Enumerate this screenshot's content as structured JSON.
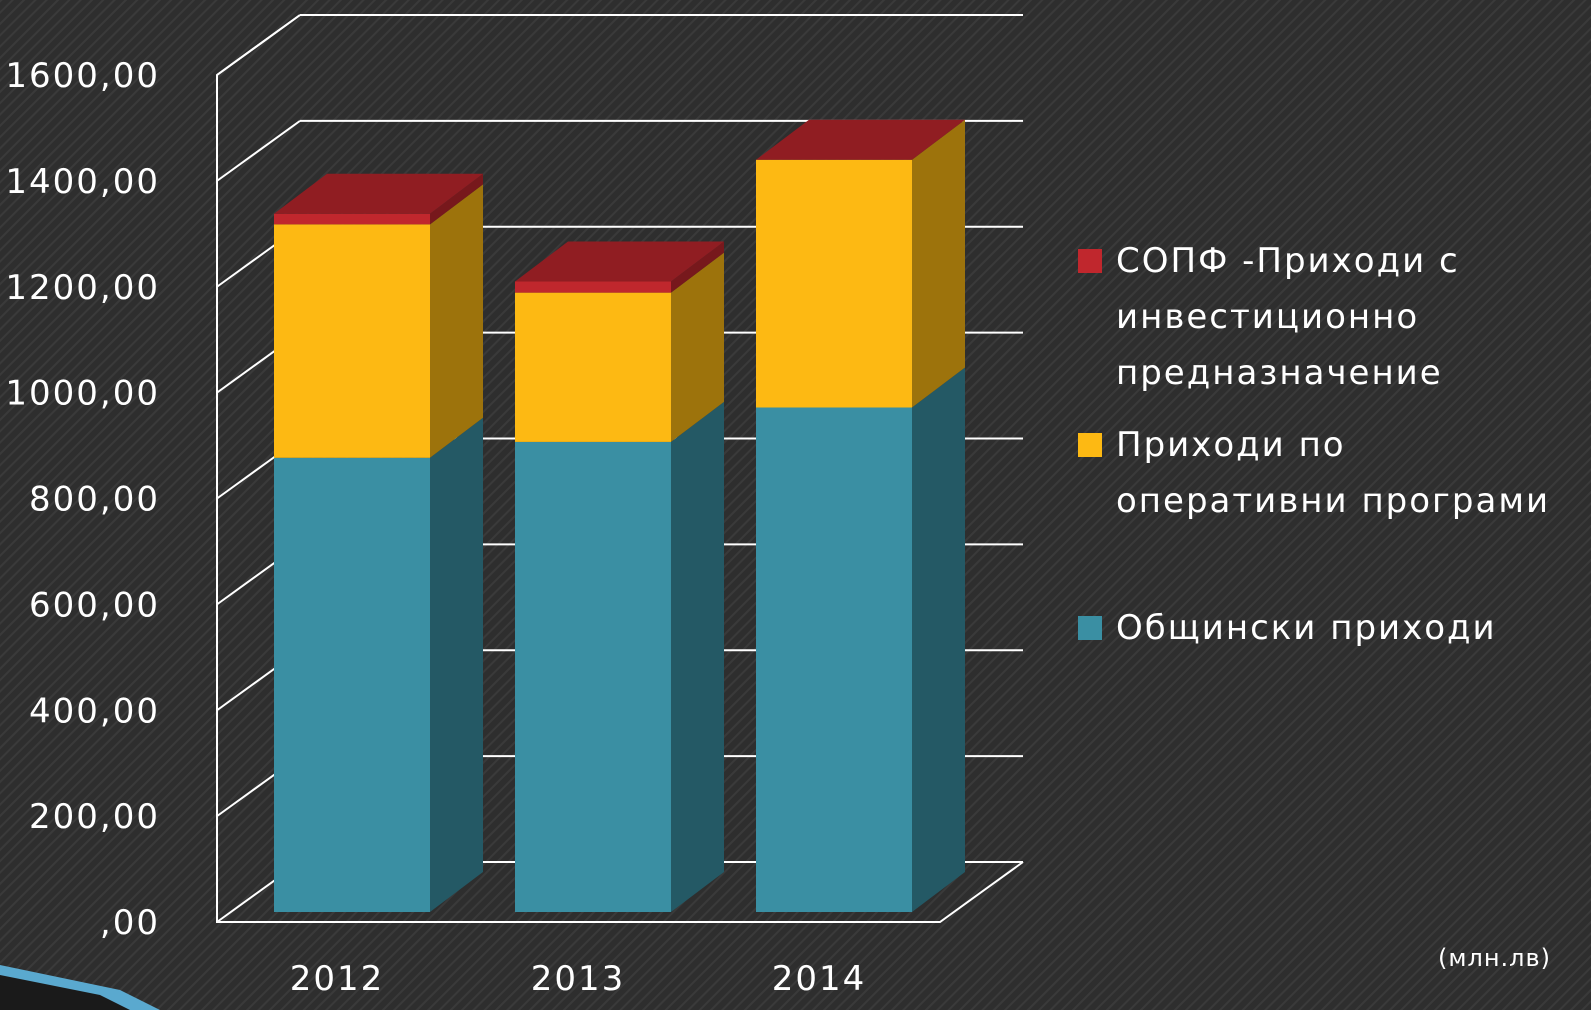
{
  "chart_data": {
    "type": "bar3d_stacked",
    "categories": [
      "2012",
      "2013",
      "2014"
    ],
    "series": [
      {
        "name": "Общински приходи",
        "color": "#3a8fa3",
        "values": [
          858,
          888,
          953
        ]
      },
      {
        "name": "Приходи по оперативни програми",
        "color": "#fdb913",
        "values": [
          441,
          282,
          468
        ]
      },
      {
        "name": "СОПФ -Приходи с инвестиционно предназначение",
        "color": "#c0272d",
        "values": [
          20,
          21,
          0
        ]
      }
    ],
    "ylim": [
      0,
      1600
    ],
    "yticks": [
      {
        "value": 0,
        "label": ",00"
      },
      {
        "value": 200,
        "label": "200,00"
      },
      {
        "value": 400,
        "label": "400,00"
      },
      {
        "value": 600,
        "label": "600,00"
      },
      {
        "value": 800,
        "label": "800,00"
      },
      {
        "value": 1000,
        "label": "1000,00"
      },
      {
        "value": 1200,
        "label": "1200,00"
      },
      {
        "value": 1400,
        "label": "1400,00"
      },
      {
        "value": 1600,
        "label": "1600,00"
      }
    ],
    "unit_note": "(млн.лв)",
    "grid": true
  }
}
